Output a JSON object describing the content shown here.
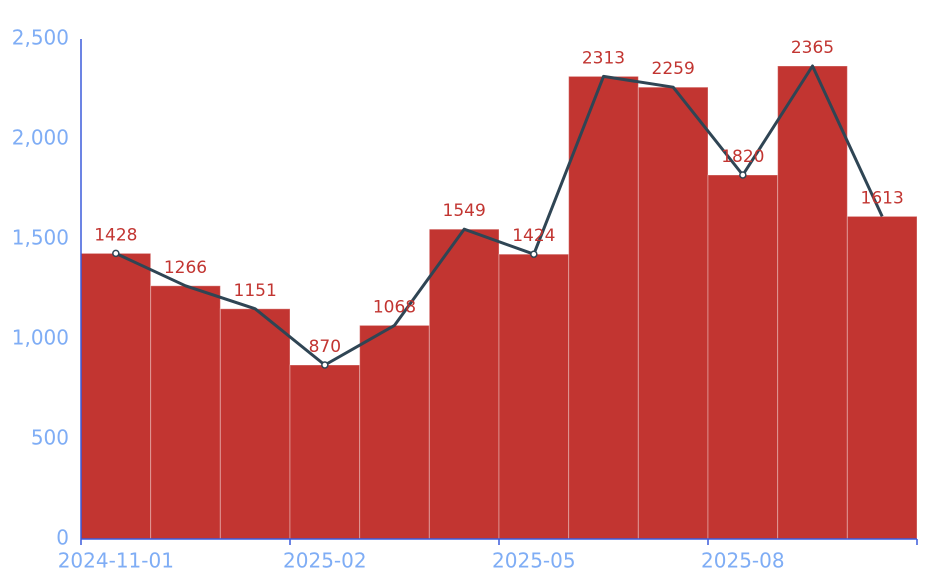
{
  "chart_data": {
    "type": "bar-line",
    "categories": [
      "2024-11-01",
      null,
      null,
      "2025-02",
      null,
      null,
      "2025-05",
      null,
      null,
      "2025-08",
      null,
      null
    ],
    "series": [
      {
        "type": "bar",
        "color": "#c23531",
        "values": [
          1428,
          1266,
          1151,
          870,
          1068,
          1549,
          1424,
          2313,
          2259,
          1820,
          2365,
          1613
        ]
      },
      {
        "type": "line",
        "color": "#2f4554",
        "values": [
          1428,
          1266,
          1151,
          870,
          1068,
          1549,
          1424,
          2313,
          2259,
          1820,
          2365,
          1613
        ]
      }
    ],
    "ylim": [
      0,
      2500
    ],
    "yticks": [
      0,
      500,
      {
        "value": 1000,
        "label": "1,000"
      },
      {
        "value": 1500,
        "label": "1,500"
      },
      {
        "value": 2000,
        "label": "2,000"
      },
      {
        "value": 2500,
        "label": "2,500"
      }
    ],
    "axis_color": "#3b5bdb",
    "tick_label_color": "#7fadf5"
  }
}
